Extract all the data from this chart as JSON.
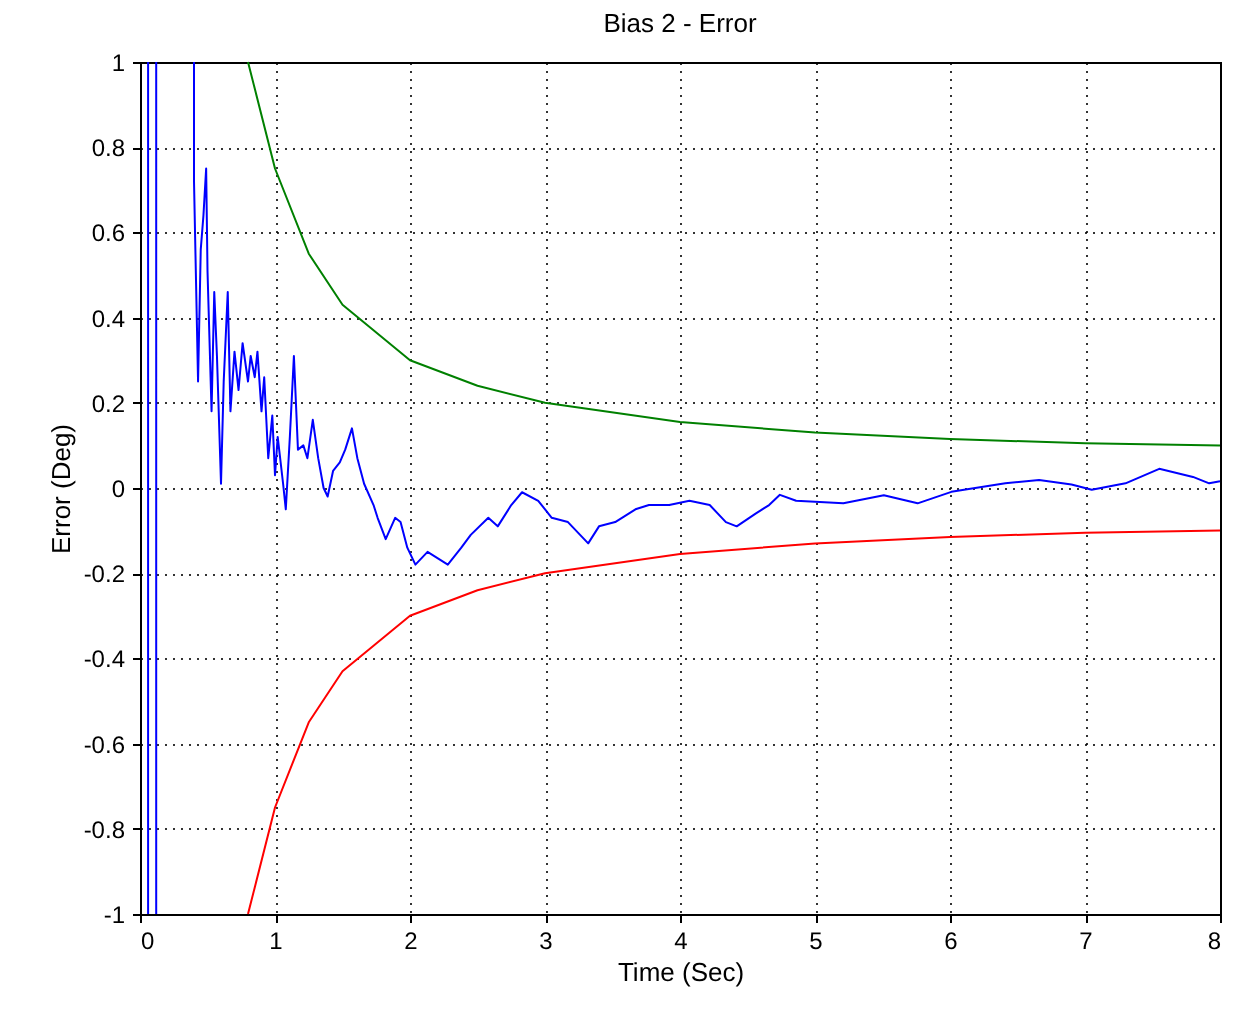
{
  "chart_data": {
    "type": "line",
    "title": "Bias 2 - Error",
    "xlabel": "Time (Sec)",
    "ylabel": "Error (Deg)",
    "xlim": [
      0,
      8
    ],
    "xticks": [
      0,
      1,
      2,
      3,
      4,
      5,
      6,
      7,
      8
    ],
    "ylim": [
      -1,
      1
    ],
    "yticks": [
      -1,
      -0.8,
      -0.6,
      -0.4,
      -0.2,
      0,
      0.2,
      0.4,
      0.6,
      0.8,
      1
    ],
    "grid": true,
    "line_style": "solid",
    "marker": "none",
    "series": [
      {
        "color": "#0000ff",
        "x": [
          0.06,
          0.06,
          0.09,
          0.12,
          0.12,
          0.25,
          0.4,
          0.4,
          0.43,
          0.45,
          0.47,
          0.49,
          0.5,
          0.53,
          0.55,
          0.57,
          0.6,
          0.62,
          0.65,
          0.67,
          0.7,
          0.73,
          0.76,
          0.8,
          0.82,
          0.85,
          0.87,
          0.9,
          0.92,
          0.95,
          0.98,
          1.0,
          1.02,
          1.06,
          1.08,
          1.11,
          1.14,
          1.17,
          1.21,
          1.24,
          1.28,
          1.32,
          1.36,
          1.39,
          1.43,
          1.48,
          1.52,
          1.57,
          1.61,
          1.66,
          1.73,
          1.76,
          1.82,
          1.89,
          1.93,
          1.98,
          2.04,
          2.13,
          2.28,
          2.38,
          2.45,
          2.58,
          2.65,
          2.75,
          2.83,
          2.95,
          3.05,
          3.17,
          3.32,
          3.4,
          3.52,
          3.67,
          3.77,
          3.92,
          4.07,
          4.22,
          4.34,
          4.42,
          4.56,
          4.66,
          4.74,
          4.86,
          5.21,
          5.51,
          5.76,
          6.01,
          6.41,
          6.66,
          6.9,
          7.05,
          7.3,
          7.55,
          7.8,
          7.92,
          8.0
        ],
        "values": [
          1,
          -1,
          null,
          -1,
          1,
          null,
          1,
          0.72,
          0.25,
          0.56,
          0.64,
          0.75,
          0.51,
          0.18,
          0.46,
          0.31,
          0.01,
          0.25,
          0.46,
          0.18,
          0.32,
          0.23,
          0.34,
          0.25,
          0.31,
          0.26,
          0.32,
          0.18,
          0.26,
          0.07,
          0.17,
          0.03,
          0.12,
          0.01,
          -0.05,
          0.12,
          0.31,
          0.09,
          0.1,
          0.07,
          0.16,
          0.07,
          0.0,
          -0.02,
          0.04,
          0.06,
          0.09,
          0.14,
          0.07,
          0.01,
          -0.04,
          -0.07,
          -0.12,
          -0.07,
          -0.08,
          -0.14,
          -0.18,
          -0.15,
          -0.18,
          -0.14,
          -0.11,
          -0.07,
          -0.09,
          -0.04,
          -0.01,
          -0.03,
          -0.07,
          -0.08,
          -0.13,
          -0.09,
          -0.08,
          -0.05,
          -0.04,
          -0.04,
          -0.03,
          -0.04,
          -0.08,
          -0.09,
          -0.06,
          -0.04,
          -0.016,
          -0.03,
          -0.036,
          -0.017,
          -0.036,
          -0.009,
          0.011,
          0.019,
          0.008,
          -0.004,
          0.011,
          0.045,
          0.026,
          0.011,
          0.016
        ]
      },
      {
        "color": "#008000",
        "x": [
          0.8,
          1.0,
          1.25,
          1.5,
          2,
          2.5,
          3,
          4,
          5,
          6,
          7,
          8
        ],
        "values": [
          1,
          0.75,
          0.55,
          0.43,
          0.3,
          0.24,
          0.2,
          0.155,
          0.13,
          0.115,
          0.105,
          0.1
        ]
      },
      {
        "color": "#ff0000",
        "x": [
          0.8,
          1.0,
          1.25,
          1.5,
          2,
          2.5,
          3,
          4,
          5,
          6,
          7,
          8
        ],
        "values": [
          -1,
          -0.75,
          -0.55,
          -0.43,
          -0.3,
          -0.24,
          -0.2,
          -0.155,
          -0.13,
          -0.115,
          -0.105,
          -0.1
        ]
      }
    ]
  }
}
